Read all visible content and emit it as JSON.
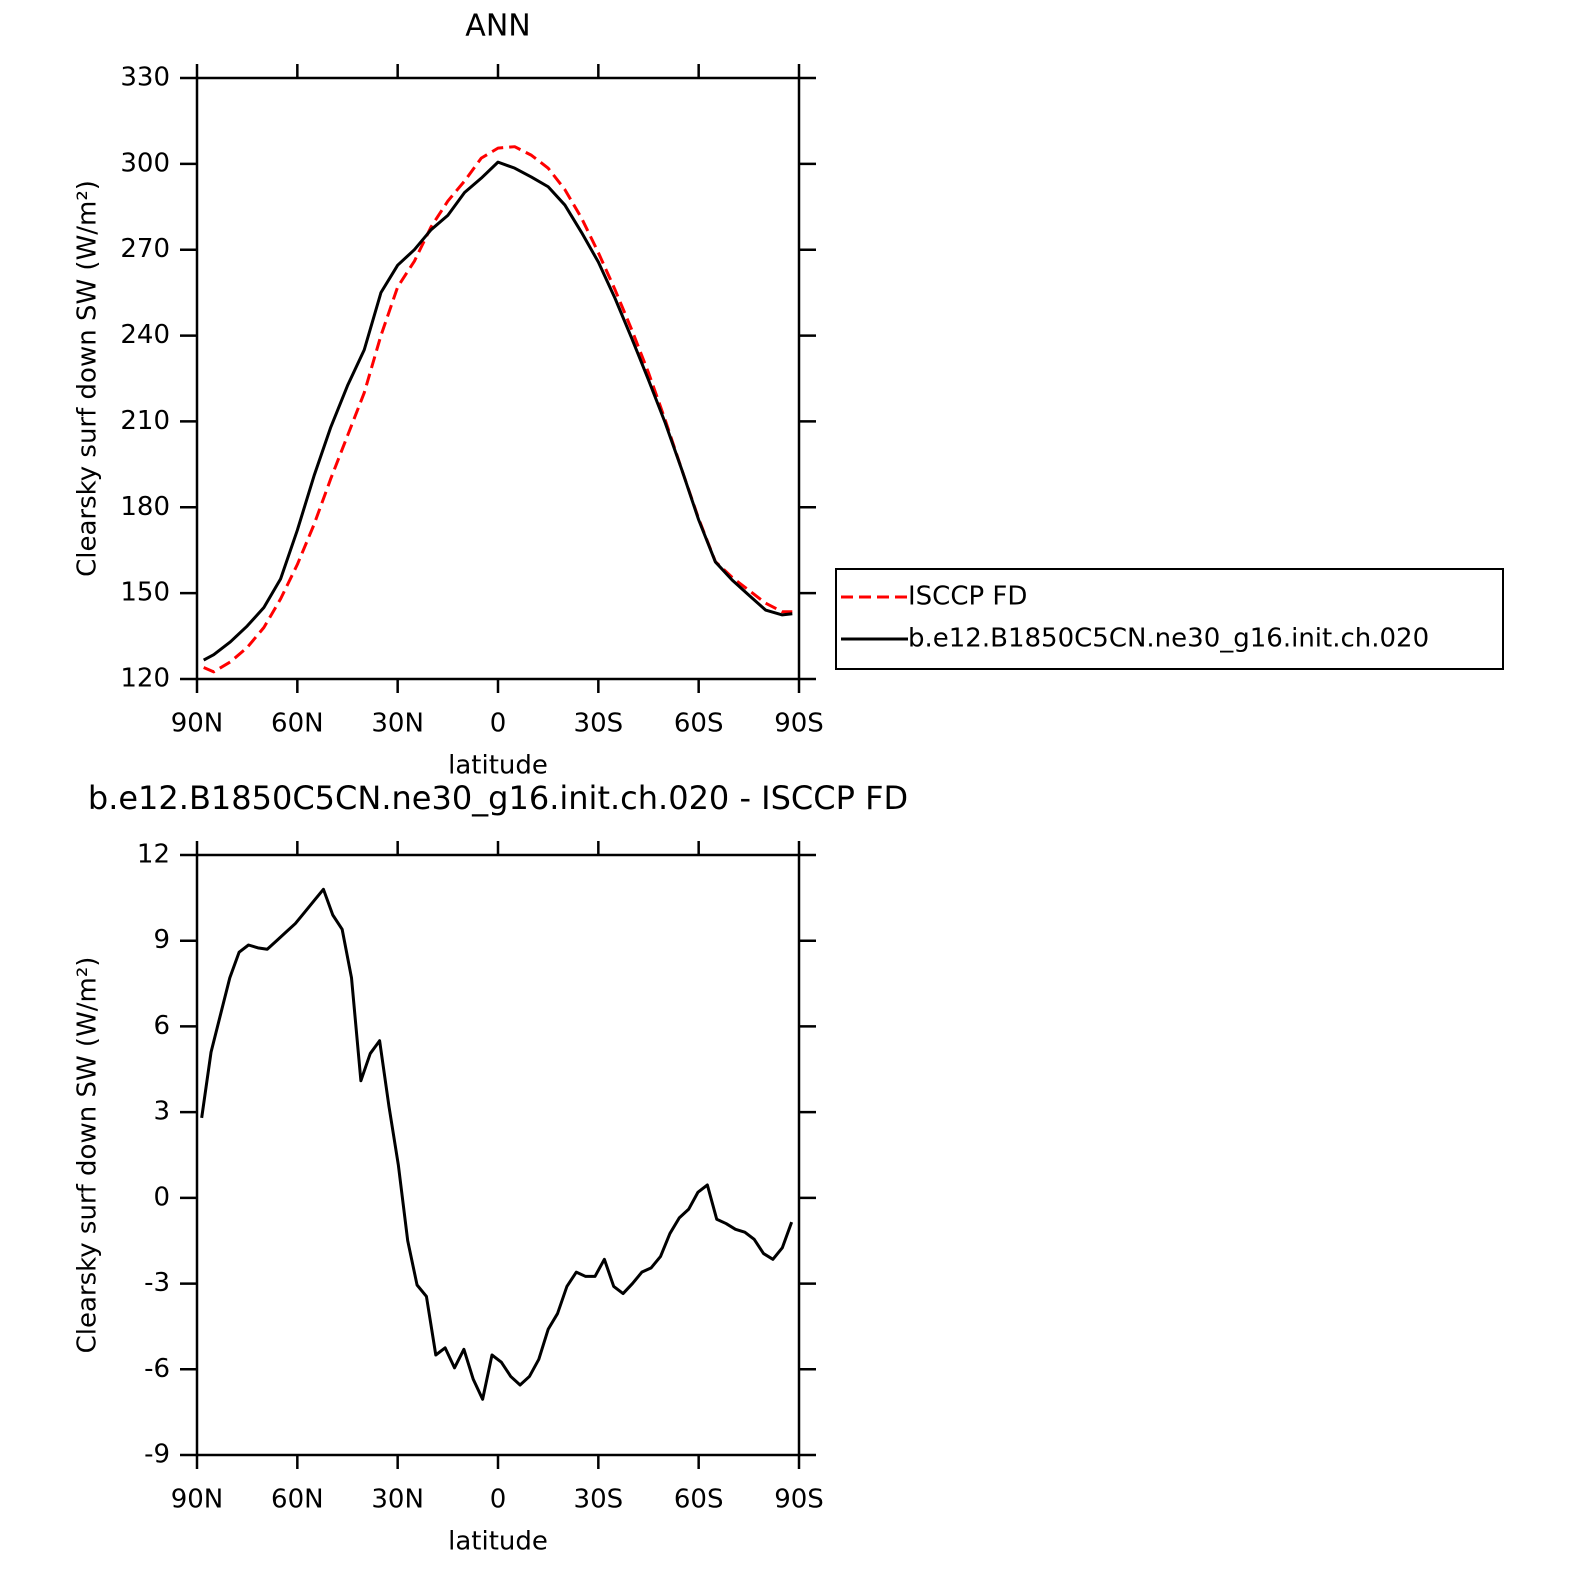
{
  "chart_data": [
    {
      "type": "line",
      "title": "ANN",
      "xlabel": "latitude",
      "ylabel": "Clearsky surf down SW (W/m²)",
      "xlim": [
        90,
        -90
      ],
      "xticks": [
        {
          "value": 90,
          "label": "90N"
        },
        {
          "value": 60,
          "label": "60N"
        },
        {
          "value": 30,
          "label": "30N"
        },
        0,
        {
          "value": -30,
          "label": "30S"
        },
        {
          "value": -60,
          "label": "60S"
        },
        {
          "value": -90,
          "label": "90S"
        }
      ],
      "ylim": [
        120,
        330
      ],
      "yticks": [
        120,
        150,
        180,
        210,
        240,
        270,
        300,
        330
      ],
      "legend": "right",
      "x": [
        88,
        85,
        80,
        75,
        70,
        65,
        60,
        55,
        50,
        45,
        40,
        35,
        30,
        25,
        20,
        15,
        10,
        5,
        0,
        -5,
        -10,
        -15,
        -20,
        -25,
        -30,
        -35,
        -40,
        -45,
        -50,
        -55,
        -60,
        -65,
        -70,
        -75,
        -80,
        -85,
        -88
      ],
      "series": [
        {
          "name": "ISCCP FD",
          "color": "#ff0000",
          "dash": "dashed",
          "values": [
            124,
            122.5,
            126,
            131,
            138,
            148,
            160,
            174,
            190,
            205,
            220,
            240,
            257,
            266,
            278,
            287,
            294,
            302,
            305.5,
            306,
            303,
            298.5,
            291,
            281,
            269,
            256,
            242,
            227,
            210.5,
            193,
            176,
            161,
            155.5,
            151,
            146.5,
            143.5,
            143.5
          ]
        },
        {
          "name": "b.e12.B1850C5CN.ne30_g16.init.ch.020",
          "color": "#000000",
          "dash": "solid",
          "values": [
            126.6,
            128.5,
            133,
            138.5,
            145,
            155,
            172,
            191,
            208,
            222.5,
            235,
            255,
            264.6,
            270,
            277,
            282,
            290,
            295,
            300.6,
            298.5,
            295.4,
            292,
            285.6,
            276,
            265.7,
            253,
            239,
            224.5,
            209.5,
            193,
            175.6,
            160.9,
            154.6,
            149.3,
            144.1,
            142.4,
            142.8
          ]
        }
      ]
    },
    {
      "type": "line",
      "title": "b.e12.B1850C5CN.ne30_g16.init.ch.020 - ISCCP FD",
      "xlabel": "latitude",
      "ylabel": "Clearsky surf down SW (W/m²)",
      "xlim": [
        90,
        -90
      ],
      "xticks": [
        {
          "value": 90,
          "label": "90N"
        },
        {
          "value": 60,
          "label": "60N"
        },
        {
          "value": 30,
          "label": "30N"
        },
        0,
        {
          "value": -30,
          "label": "30S"
        },
        {
          "value": -60,
          "label": "60S"
        },
        {
          "value": -90,
          "label": "90S"
        }
      ],
      "ylim": [
        -9,
        12
      ],
      "yticks": [
        -9,
        -6,
        -3,
        0,
        3,
        6,
        9,
        12
      ],
      "x": [
        88.6,
        85.8,
        83,
        80.2,
        77.4,
        74.6,
        71.8,
        69,
        66.2,
        63.4,
        60.6,
        57.8,
        55,
        52.2,
        49.4,
        46.6,
        43.8,
        41,
        38.2,
        35.4,
        32.6,
        29.8,
        27,
        24.2,
        21.4,
        18.6,
        15.8,
        13,
        10.2,
        7.4,
        4.6,
        1.8,
        -1,
        -3.8,
        -6.6,
        -9.4,
        -12.2,
        -15,
        -17.8,
        -20.6,
        -23.4,
        -26.2,
        -29,
        -31.8,
        -34.6,
        -37.4,
        -40.2,
        -43,
        -45.8,
        -48.6,
        -51.4,
        -54.2,
        -57,
        -59.8,
        -62.6,
        -65.4,
        -68.2,
        -71,
        -73.8,
        -76.6,
        -79.4,
        -82.2,
        -85,
        -87.8
      ],
      "series": [
        {
          "color": "#000000",
          "dash": "solid",
          "values": [
            2.8,
            5.1,
            6.4,
            7.7,
            8.6,
            8.85,
            8.75,
            8.7,
            9.0,
            9.3,
            9.6,
            10.0,
            10.4,
            10.8,
            9.9,
            9.4,
            7.7,
            4.1,
            5.05,
            5.5,
            3.2,
            1.15,
            -1.5,
            -3.05,
            -3.45,
            -5.5,
            -5.25,
            -5.95,
            -5.3,
            -6.35,
            -7.05,
            -5.5,
            -5.75,
            -6.25,
            -6.55,
            -6.25,
            -5.65,
            -4.6,
            -4.05,
            -3.1,
            -2.6,
            -2.75,
            -2.75,
            -2.15,
            -3.1,
            -3.35,
            -3.0,
            -2.6,
            -2.45,
            -2.05,
            -1.25,
            -0.7,
            -0.4,
            0.2,
            0.45,
            -0.75,
            -0.9,
            -1.1,
            -1.2,
            -1.45,
            -1.95,
            -2.15,
            -1.75,
            -0.85
          ]
        }
      ]
    }
  ]
}
